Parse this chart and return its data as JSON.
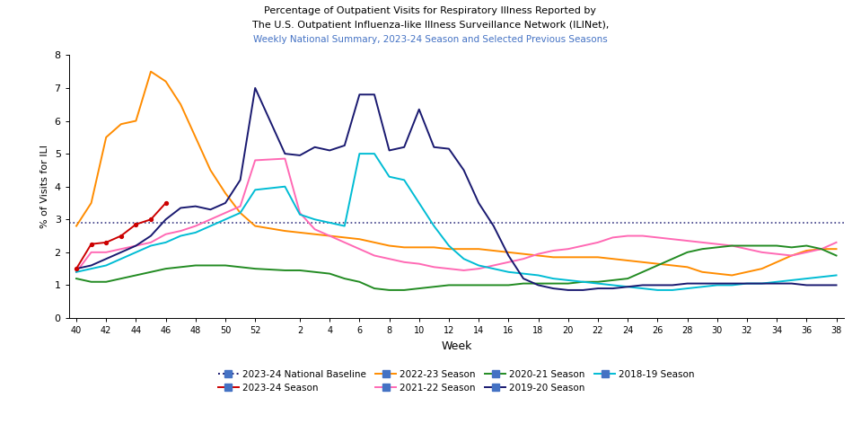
{
  "title_line1": "Percentage of Outpatient Visits for Respiratory Illness Reported by",
  "title_line2": "The U.S. Outpatient Influenza-like Illness Surveillance Network (ILINet),",
  "title_line3": "Weekly National Summary, 2023-24 Season and Selected Previous Seasons",
  "xlabel": "Week",
  "ylabel": "% of Visits for ILI",
  "ylim": [
    0,
    8
  ],
  "baseline_value": 2.9,
  "seasons": {
    "2023-24 Season": {
      "color": "#cc0000",
      "weeks": [
        40,
        41,
        42,
        43,
        44,
        45,
        46
      ],
      "values": [
        1.5,
        2.25,
        2.3,
        2.5,
        2.85,
        3.0,
        3.5
      ]
    },
    "2022-23 Season": {
      "color": "#ff8c00",
      "weeks": [
        40,
        41,
        42,
        43,
        44,
        45,
        46,
        47,
        48,
        49,
        50,
        51,
        52,
        1,
        2,
        3,
        4,
        5,
        6,
        7,
        8,
        9,
        10,
        11,
        12,
        13,
        14,
        15,
        16,
        17,
        18,
        19,
        20,
        21,
        22,
        23,
        24,
        25,
        26,
        27,
        28,
        29,
        30,
        31,
        32,
        33,
        34,
        35,
        36,
        37,
        38
      ],
      "values": [
        2.8,
        3.5,
        5.5,
        5.9,
        6.0,
        7.5,
        7.2,
        6.5,
        5.5,
        4.5,
        3.8,
        3.2,
        2.8,
        2.65,
        2.6,
        2.55,
        2.5,
        2.45,
        2.4,
        2.3,
        2.2,
        2.15,
        2.15,
        2.15,
        2.1,
        2.1,
        2.1,
        2.05,
        2.0,
        1.95,
        1.9,
        1.85,
        1.85,
        1.85,
        1.85,
        1.8,
        1.75,
        1.7,
        1.65,
        1.6,
        1.55,
        1.4,
        1.35,
        1.3,
        1.4,
        1.5,
        1.7,
        1.9,
        2.05,
        2.1,
        2.1
      ]
    },
    "2021-22 Season": {
      "color": "#ff69b4",
      "weeks": [
        40,
        41,
        42,
        43,
        44,
        45,
        46,
        47,
        48,
        49,
        50,
        51,
        52,
        1,
        2,
        3,
        4,
        5,
        6,
        7,
        8,
        9,
        10,
        11,
        12,
        13,
        14,
        15,
        16,
        17,
        18,
        19,
        20,
        21,
        22,
        23,
        24,
        25,
        26,
        27,
        28,
        29,
        30,
        31,
        32,
        33,
        34,
        35,
        36,
        37,
        38
      ],
      "values": [
        1.4,
        2.0,
        2.0,
        2.1,
        2.2,
        2.3,
        2.55,
        2.65,
        2.8,
        3.0,
        3.2,
        3.4,
        4.8,
        4.85,
        3.2,
        2.7,
        2.5,
        2.3,
        2.1,
        1.9,
        1.8,
        1.7,
        1.65,
        1.55,
        1.5,
        1.45,
        1.5,
        1.6,
        1.7,
        1.8,
        1.95,
        2.05,
        2.1,
        2.2,
        2.3,
        2.45,
        2.5,
        2.5,
        2.45,
        2.4,
        2.35,
        2.3,
        2.25,
        2.2,
        2.1,
        2.0,
        1.95,
        1.9,
        2.0,
        2.1,
        2.3
      ]
    },
    "2020-21 Season": {
      "color": "#228b22",
      "weeks": [
        40,
        41,
        42,
        43,
        44,
        45,
        46,
        47,
        48,
        49,
        50,
        51,
        52,
        1,
        2,
        3,
        4,
        5,
        6,
        7,
        8,
        9,
        10,
        11,
        12,
        13,
        14,
        15,
        16,
        17,
        18,
        19,
        20,
        21,
        22,
        23,
        24,
        25,
        26,
        27,
        28,
        29,
        30,
        31,
        32,
        33,
        34,
        35,
        36,
        37,
        38
      ],
      "values": [
        1.2,
        1.1,
        1.1,
        1.2,
        1.3,
        1.4,
        1.5,
        1.55,
        1.6,
        1.6,
        1.6,
        1.55,
        1.5,
        1.45,
        1.45,
        1.4,
        1.35,
        1.2,
        1.1,
        0.9,
        0.85,
        0.85,
        0.9,
        0.95,
        1.0,
        1.0,
        1.0,
        1.0,
        1.0,
        1.05,
        1.05,
        1.05,
        1.05,
        1.1,
        1.1,
        1.15,
        1.2,
        1.4,
        1.6,
        1.8,
        2.0,
        2.1,
        2.15,
        2.2,
        2.2,
        2.2,
        2.2,
        2.15,
        2.2,
        2.1,
        1.9
      ]
    },
    "2019-20 Season": {
      "color": "#191970",
      "weeks": [
        40,
        41,
        42,
        43,
        44,
        45,
        46,
        47,
        48,
        49,
        50,
        51,
        52,
        1,
        2,
        3,
        4,
        5,
        6,
        7,
        8,
        9,
        10,
        11,
        12,
        13,
        14,
        15,
        16,
        17,
        18,
        19,
        20,
        21,
        22,
        23,
        24,
        25,
        26,
        27,
        28,
        29,
        30,
        31,
        32,
        33,
        34,
        35,
        36,
        37,
        38
      ],
      "values": [
        1.5,
        1.6,
        1.8,
        2.0,
        2.2,
        2.5,
        3.0,
        3.35,
        3.4,
        3.3,
        3.5,
        4.2,
        7.0,
        5.0,
        4.95,
        5.2,
        5.1,
        5.25,
        6.8,
        6.8,
        5.1,
        5.2,
        6.35,
        5.2,
        5.15,
        4.5,
        3.5,
        2.8,
        1.9,
        1.2,
        1.0,
        0.9,
        0.85,
        0.85,
        0.9,
        0.9,
        0.95,
        1.0,
        1.0,
        1.0,
        1.05,
        1.05,
        1.05,
        1.05,
        1.05,
        1.05,
        1.05,
        1.05,
        1.0,
        1.0,
        1.0
      ]
    },
    "2018-19 Season": {
      "color": "#00bcd4",
      "weeks": [
        40,
        41,
        42,
        43,
        44,
        45,
        46,
        47,
        48,
        49,
        50,
        51,
        52,
        1,
        2,
        3,
        4,
        5,
        6,
        7,
        8,
        9,
        10,
        11,
        12,
        13,
        14,
        15,
        16,
        17,
        18,
        19,
        20,
        21,
        22,
        23,
        24,
        25,
        26,
        27,
        28,
        29,
        30,
        31,
        32,
        33,
        34,
        35,
        36,
        37,
        38
      ],
      "values": [
        1.4,
        1.5,
        1.6,
        1.8,
        2.0,
        2.2,
        2.3,
        2.5,
        2.6,
        2.8,
        3.0,
        3.2,
        3.9,
        4.0,
        3.15,
        3.0,
        2.9,
        2.8,
        5.0,
        5.0,
        4.3,
        4.2,
        3.5,
        2.8,
        2.2,
        1.8,
        1.6,
        1.5,
        1.4,
        1.35,
        1.3,
        1.2,
        1.15,
        1.1,
        1.05,
        1.0,
        0.95,
        0.9,
        0.85,
        0.85,
        0.9,
        0.95,
        1.0,
        1.0,
        1.05,
        1.05,
        1.1,
        1.15,
        1.2,
        1.25,
        1.3
      ]
    }
  },
  "x_ticks": [
    40,
    42,
    44,
    46,
    48,
    50,
    52,
    2,
    4,
    6,
    8,
    10,
    12,
    14,
    16,
    18,
    20,
    22,
    24,
    26,
    28,
    30,
    32,
    34,
    36,
    38
  ],
  "x_tick_labels": [
    "40",
    "42",
    "44",
    "46",
    "48",
    "50",
    "52",
    "2",
    "4",
    "6",
    "8",
    "10",
    "12",
    "14",
    "16",
    "18",
    "20",
    "22",
    "24",
    "26",
    "28",
    "30",
    "32",
    "34",
    "36",
    "38"
  ],
  "y_ticks": [
    0,
    1,
    2,
    3,
    4,
    5,
    6,
    7,
    8
  ],
  "background_color": "#ffffff",
  "baseline_color": "#191970",
  "legend_items": [
    {
      "label": "2023-24 National Baseline",
      "color": "#191970",
      "linestyle": ":"
    },
    {
      "label": "2023-24 Season",
      "color": "#cc0000",
      "linestyle": "-"
    },
    {
      "label": "2022-23 Season",
      "color": "#ff8c00",
      "linestyle": "-"
    },
    {
      "label": "2021-22 Season",
      "color": "#ff69b4",
      "linestyle": "-"
    },
    {
      "label": "2020-21 Season",
      "color": "#228b22",
      "linestyle": "-"
    },
    {
      "label": "2019-20 Season",
      "color": "#191970",
      "linestyle": "-"
    },
    {
      "label": "2018-19 Season",
      "color": "#00bcd4",
      "linestyle": "-"
    }
  ]
}
